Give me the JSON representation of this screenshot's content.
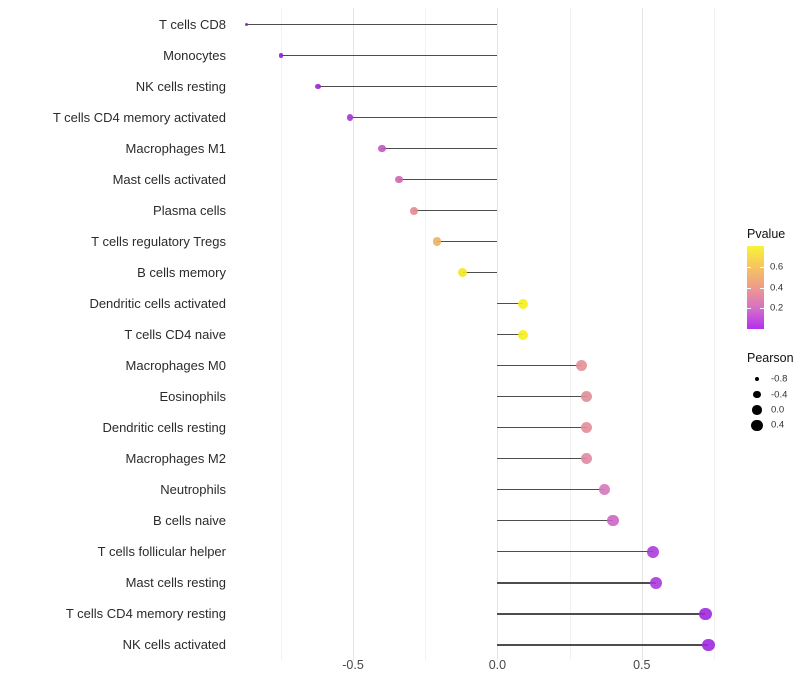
{
  "chart_data": {
    "type": "lollipop",
    "title": "",
    "xlabel": "",
    "ylabel": "",
    "grid": "major and minor vertical gridlines, white background",
    "x_tick_labels": [
      "-0.5",
      "0.0",
      "0.5"
    ],
    "x_tick_values": [
      -0.5,
      0.0,
      0.5
    ],
    "x_minor_gridlines": [
      -0.75,
      -0.25,
      0.25,
      0.75
    ],
    "xlim": [
      -0.95,
      0.8
    ],
    "stem_color": "#4d4d4d",
    "points": [
      {
        "label": "T cells CD8",
        "pearson": -0.87,
        "pvalue_approx": 0.04,
        "color": "#8b19d8"
      },
      {
        "label": "Monocytes",
        "pearson": -0.75,
        "pvalue_approx": 0.04,
        "color": "#8f1ed7"
      },
      {
        "label": "NK cells resting",
        "pearson": -0.62,
        "pvalue_approx": 0.06,
        "color": "#9a28d4"
      },
      {
        "label": "T cells CD4 memory activated",
        "pearson": -0.51,
        "pvalue_approx": 0.08,
        "color": "#a536d0"
      },
      {
        "label": "Macrophages M1",
        "pearson": -0.4,
        "pvalue_approx": 0.15,
        "color": "#c254c2"
      },
      {
        "label": "Mast cells activated",
        "pearson": -0.34,
        "pvalue_approx": 0.19,
        "color": "#cd67b0"
      },
      {
        "label": "Plasma cells",
        "pearson": -0.29,
        "pvalue_approx": 0.36,
        "color": "#e28b91"
      },
      {
        "label": "T cells regulatory  Tregs",
        "pearson": -0.21,
        "pvalue_approx": 0.52,
        "color": "#ecb163"
      },
      {
        "label": "B cells memory",
        "pearson": -0.12,
        "pvalue_approx": 0.72,
        "color": "#f2e81e"
      },
      {
        "label": "Dendritic cells activated",
        "pearson": 0.09,
        "pvalue_approx": 0.75,
        "color": "#f5ee16"
      },
      {
        "label": "T cells CD4 naive",
        "pearson": 0.09,
        "pvalue_approx": 0.75,
        "color": "#f5ee16"
      },
      {
        "label": "Macrophages M0",
        "pearson": 0.29,
        "pvalue_approx": 0.37,
        "color": "#e29097"
      },
      {
        "label": "Eosinophils",
        "pearson": 0.31,
        "pvalue_approx": 0.37,
        "color": "#e18e98"
      },
      {
        "label": "Dendritic cells resting",
        "pearson": 0.31,
        "pvalue_approx": 0.37,
        "color": "#e18e9b"
      },
      {
        "label": "Macrophages M2",
        "pearson": 0.31,
        "pvalue_approx": 0.35,
        "color": "#df8aa1"
      },
      {
        "label": "Neutrophils",
        "pearson": 0.37,
        "pvalue_approx": 0.21,
        "color": "#d577bd"
      },
      {
        "label": "B cells naive",
        "pearson": 0.4,
        "pvalue_approx": 0.19,
        "color": "#cd66c4"
      },
      {
        "label": "T cells follicular helper",
        "pearson": 0.54,
        "pvalue_approx": 0.09,
        "color": "#ab3dd9"
      },
      {
        "label": "Mast cells resting",
        "pearson": 0.55,
        "pvalue_approx": 0.09,
        "color": "#aa3adb"
      },
      {
        "label": "T cells CD4 memory resting",
        "pearson": 0.72,
        "pvalue_approx": 0.05,
        "color": "#9e29df"
      },
      {
        "label": "NK cells activated",
        "pearson": 0.73,
        "pvalue_approx": 0.05,
        "color": "#9d28e0"
      }
    ],
    "legend_pvalue": {
      "title": "Pvalue",
      "tick_labels": [
        "0.6",
        "0.4",
        "0.2"
      ],
      "bar_range": [
        0.0,
        0.8
      ],
      "gradient_top_to_bottom": [
        "#f9f338",
        "#f6c55f",
        "#ee9b8d",
        "#d76fc6",
        "#b230f2"
      ]
    },
    "legend_pearson": {
      "title": "Pearson",
      "size_values": [
        -0.8,
        -0.4,
        0.0,
        0.4
      ],
      "size_labels": [
        "-0.8",
        "-0.4",
        "0.0",
        "0.4"
      ],
      "dot_color": "#000000"
    }
  }
}
